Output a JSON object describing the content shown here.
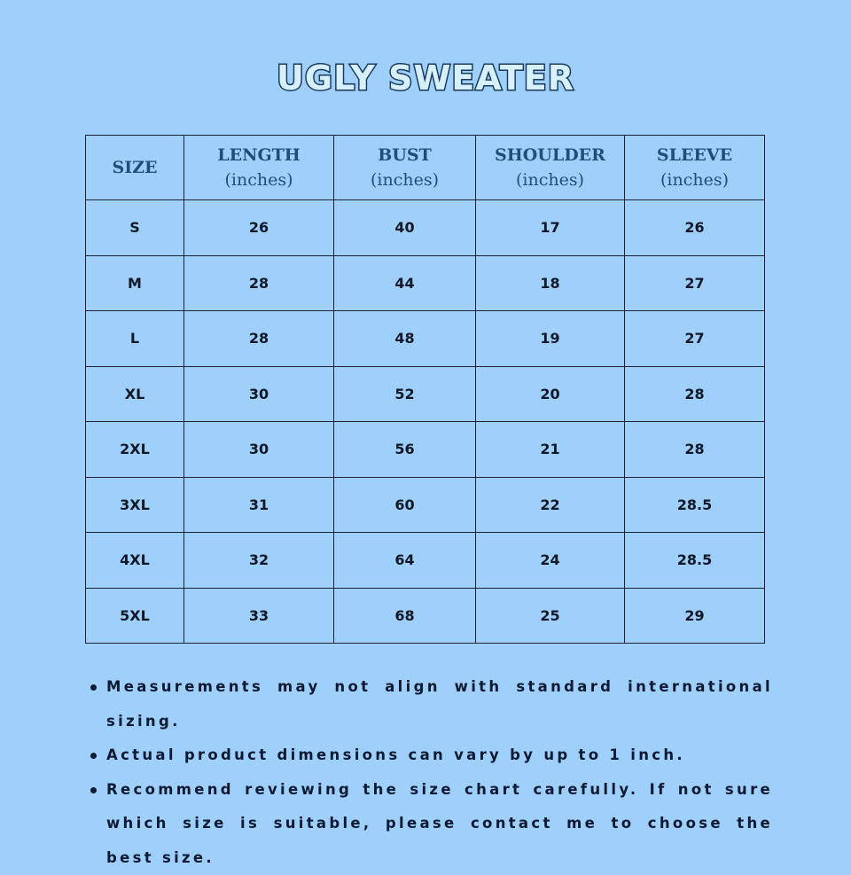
{
  "title": "UGLY SWEATER",
  "colors": {
    "background": "#9fd0fb",
    "header_text": "#1f4e7c",
    "title_fill": "#d6f1fc",
    "title_stroke": "#1b3a5c"
  },
  "table": {
    "headers": [
      {
        "label": "SIZE",
        "unit": ""
      },
      {
        "label": "LENGTH",
        "unit": "(inches)"
      },
      {
        "label": "BUST",
        "unit": "(inches)"
      },
      {
        "label": "SHOULDER",
        "unit": "(inches)"
      },
      {
        "label": "SLEEVE",
        "unit": "(inches)"
      }
    ],
    "rows": [
      [
        "S",
        "26",
        "40",
        "17",
        "26"
      ],
      [
        "M",
        "28",
        "44",
        "18",
        "27"
      ],
      [
        "L",
        "28",
        "48",
        "19",
        "27"
      ],
      [
        "XL",
        "30",
        "52",
        "20",
        "28"
      ],
      [
        "2XL",
        "30",
        "56",
        "21",
        "28"
      ],
      [
        "3XL",
        "31",
        "60",
        "22",
        "28.5"
      ],
      [
        "4XL",
        "32",
        "64",
        "24",
        "28.5"
      ],
      [
        "5XL",
        "33",
        "68",
        "25",
        "29"
      ]
    ]
  },
  "notes": [
    "Measurements may not align with standard international sizing.",
    "Actual product dimensions can vary by up to 1 inch.",
    "Recommend reviewing the size chart carefully. If not sure which size is suitable, please contact me to choose the best size."
  ]
}
